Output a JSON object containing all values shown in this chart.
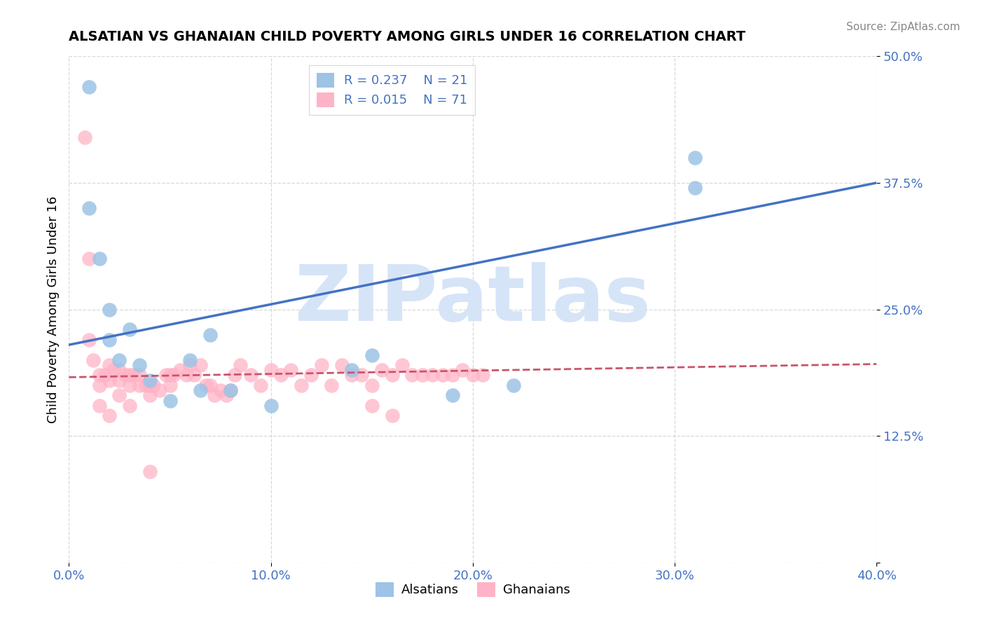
{
  "title": "ALSATIAN VS GHANAIAN CHILD POVERTY AMONG GIRLS UNDER 16 CORRELATION CHART",
  "source": "Source: ZipAtlas.com",
  "ylabel": "Child Poverty Among Girls Under 16",
  "xlim": [
    0.0,
    0.4
  ],
  "ylim": [
    0.0,
    0.5
  ],
  "xticks": [
    0.0,
    0.1,
    0.2,
    0.3,
    0.4
  ],
  "xtick_labels": [
    "0.0%",
    "10.0%",
    "20.0%",
    "30.0%",
    "40.0%"
  ],
  "yticks": [
    0.0,
    0.125,
    0.25,
    0.375,
    0.5
  ],
  "ytick_labels": [
    "",
    "12.5%",
    "25.0%",
    "37.5%",
    "50.0%"
  ],
  "legend_r1": "R = 0.237",
  "legend_n1": "N = 21",
  "legend_r2": "R = 0.015",
  "legend_n2": "N = 71",
  "color_blue_trend": "#4472C4",
  "color_pink_trend": "#C9546C",
  "color_blue_scatter": "#9DC3E6",
  "color_pink_scatter": "#FFB3C6",
  "axis_label_color": "#4472C4",
  "grid_color": "#BFBFBF",
  "watermark": "ZIPatlas",
  "watermark_color": "#D6E4F7",
  "blue_trend": [
    0.0,
    0.215,
    0.4,
    0.375
  ],
  "pink_trend": [
    0.0,
    0.183,
    0.4,
    0.196
  ],
  "alsatians_x": [
    0.01,
    0.01,
    0.02,
    0.025,
    0.03,
    0.04,
    0.05,
    0.06,
    0.065,
    0.07,
    0.08,
    0.1,
    0.14,
    0.15,
    0.19,
    0.22,
    0.31,
    0.31,
    0.015,
    0.02,
    0.035
  ],
  "alsatians_y": [
    0.47,
    0.35,
    0.25,
    0.2,
    0.23,
    0.18,
    0.16,
    0.2,
    0.17,
    0.225,
    0.17,
    0.155,
    0.19,
    0.205,
    0.165,
    0.175,
    0.4,
    0.37,
    0.3,
    0.22,
    0.195
  ],
  "ghanaians_x": [
    0.008,
    0.01,
    0.01,
    0.012,
    0.015,
    0.015,
    0.018,
    0.02,
    0.02,
    0.022,
    0.025,
    0.025,
    0.028,
    0.03,
    0.03,
    0.032,
    0.035,
    0.035,
    0.038,
    0.04,
    0.04,
    0.042,
    0.045,
    0.048,
    0.05,
    0.05,
    0.052,
    0.055,
    0.058,
    0.06,
    0.062,
    0.065,
    0.068,
    0.07,
    0.072,
    0.075,
    0.078,
    0.08,
    0.082,
    0.085,
    0.09,
    0.095,
    0.1,
    0.105,
    0.11,
    0.115,
    0.12,
    0.125,
    0.13,
    0.135,
    0.14,
    0.145,
    0.15,
    0.155,
    0.16,
    0.165,
    0.17,
    0.175,
    0.18,
    0.185,
    0.19,
    0.195,
    0.2,
    0.205,
    0.15,
    0.16,
    0.025,
    0.03,
    0.015,
    0.02,
    0.04
  ],
  "ghanaians_y": [
    0.42,
    0.3,
    0.22,
    0.2,
    0.185,
    0.175,
    0.185,
    0.18,
    0.195,
    0.19,
    0.19,
    0.18,
    0.185,
    0.175,
    0.185,
    0.185,
    0.185,
    0.175,
    0.175,
    0.175,
    0.165,
    0.175,
    0.17,
    0.185,
    0.175,
    0.185,
    0.185,
    0.19,
    0.185,
    0.195,
    0.185,
    0.195,
    0.175,
    0.175,
    0.165,
    0.17,
    0.165,
    0.17,
    0.185,
    0.195,
    0.185,
    0.175,
    0.19,
    0.185,
    0.19,
    0.175,
    0.185,
    0.195,
    0.175,
    0.195,
    0.185,
    0.185,
    0.175,
    0.19,
    0.185,
    0.195,
    0.185,
    0.185,
    0.185,
    0.185,
    0.185,
    0.19,
    0.185,
    0.185,
    0.155,
    0.145,
    0.165,
    0.155,
    0.155,
    0.145,
    0.09
  ]
}
